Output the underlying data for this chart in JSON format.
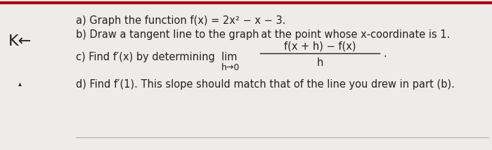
{
  "background_color": "#edecea",
  "left_symbol": "K←",
  "arrow_symbol": "▴",
  "line_a": "a) Graph the function f(x) = 2x² − x − 3.",
  "line_b": "b) Draw a tangent line to the graph at the point whose x-coordinate is 1.",
  "line_c_prefix": "c) Find f′(x) by determining  lim",
  "line_c_num": "f(x + h) − f(x)",
  "line_c_den": "h",
  "limit_label": "h→0",
  "period": ".",
  "line_d": "d) Find f′(1). This slope should match that of the line you drew in part (b).",
  "bottom_line_color": "#aaaaaa",
  "top_line_color": "#aa0000",
  "font_size_main": 10.5,
  "text_color": "#222222"
}
